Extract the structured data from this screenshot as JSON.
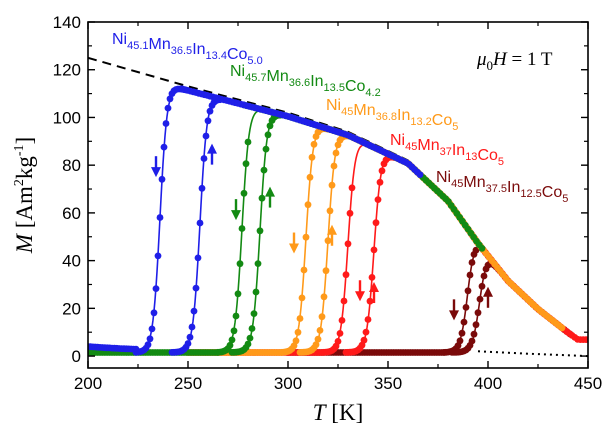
{
  "chart_data": {
    "type": "scatter",
    "title": "",
    "xlabel": {
      "symbol": "T",
      "unit": "[K]"
    },
    "ylabel": {
      "symbol": "M",
      "unit_prefix": "[Am",
      "unit_exp1": "2",
      "unit_mid": "kg",
      "unit_exp2": "-1",
      "unit_suffix": "]"
    },
    "xlim": [
      200,
      450
    ],
    "ylim": [
      -5,
      140
    ],
    "xticks": [
      "200",
      "250",
      "300",
      "350",
      "400",
      "450"
    ],
    "yticks": [
      "0",
      "20",
      "40",
      "60",
      "80",
      "100",
      "120",
      "140"
    ],
    "field_label": {
      "symbol": "μ",
      "sub": "0",
      "rest": "H = 1 T"
    },
    "grid": false,
    "series": [
      {
        "label_parts": [
          [
            "Ni",
            "45.1"
          ],
          [
            "Mn",
            "36.5"
          ],
          [
            "In",
            "13.4"
          ],
          [
            "Co",
            "5.0"
          ]
        ],
        "color": "#1f1fe8",
        "cooling_drop": 236,
        "heating_rise": 256,
        "start_T": 200,
        "sat_T": 247
      },
      {
        "label_parts": [
          [
            "Ni",
            "45.7"
          ],
          [
            "Mn",
            "36.6"
          ],
          [
            "In",
            "13.5"
          ],
          [
            "Co",
            "4.2"
          ]
        ],
        "color": "#138a13",
        "cooling_drop": 277,
        "heating_rise": 286,
        "start_T": 200,
        "sat_T": 278
      },
      {
        "label_parts": [
          [
            "Ni",
            "45"
          ],
          [
            "Mn",
            "36.8"
          ],
          [
            "In",
            "13.2"
          ],
          [
            "Co",
            "5"
          ]
        ],
        "color": "#ff9a1a",
        "cooling_drop": 309,
        "heating_rise": 320,
        "start_T": 250,
        "sat_T": 318
      },
      {
        "label_parts": [
          [
            "Ni",
            "45"
          ],
          [
            "Mn",
            "37"
          ],
          [
            "In",
            "13"
          ],
          [
            "Co",
            "5"
          ]
        ],
        "color": "#ff1a1a",
        "cooling_drop": 330,
        "heating_rise": 343,
        "start_T": 250,
        "sat_T": 330
      },
      {
        "label_parts": [
          [
            "Ni",
            "45"
          ],
          [
            "Mn",
            "37.5"
          ],
          [
            "In",
            "12.5"
          ],
          [
            "Co",
            "5"
          ]
        ],
        "color": "#7a0a0a",
        "cooling_drop": 390,
        "heating_rise": 396,
        "start_T": 300,
        "sat_T": 392,
        "end_T": 442
      }
    ],
    "arrows": [
      {
        "series": 0,
        "T": 234,
        "M": 80,
        "dir": "down"
      },
      {
        "series": 0,
        "T": 262,
        "M": 84,
        "dir": "up"
      },
      {
        "series": 1,
        "T": 274,
        "M": 62,
        "dir": "down"
      },
      {
        "series": 1,
        "T": 291,
        "M": 66,
        "dir": "up"
      },
      {
        "series": 2,
        "T": 303,
        "M": 48,
        "dir": "down"
      },
      {
        "series": 2,
        "T": 322,
        "M": 50,
        "dir": "up"
      },
      {
        "series": 3,
        "T": 336,
        "M": 28,
        "dir": "down"
      },
      {
        "series": 3,
        "T": 343,
        "M": 26,
        "dir": "up"
      },
      {
        "series": 4,
        "T": 383,
        "M": 20,
        "dir": "down"
      },
      {
        "series": 4,
        "T": 400,
        "M": 24,
        "dir": "up"
      }
    ],
    "reference_curves": [
      {
        "style": "dashed",
        "T": [
          200,
          250,
          300,
          330,
          360,
          380,
          395,
          410,
          425,
          440,
          445
        ],
        "M": [
          125,
          113,
          102,
          94,
          82,
          66,
          48,
          32,
          20,
          10,
          7
        ]
      },
      {
        "style": "dotted",
        "T": [
          395,
          420,
          450
        ],
        "M": [
          2,
          1,
          0
        ]
      }
    ]
  }
}
